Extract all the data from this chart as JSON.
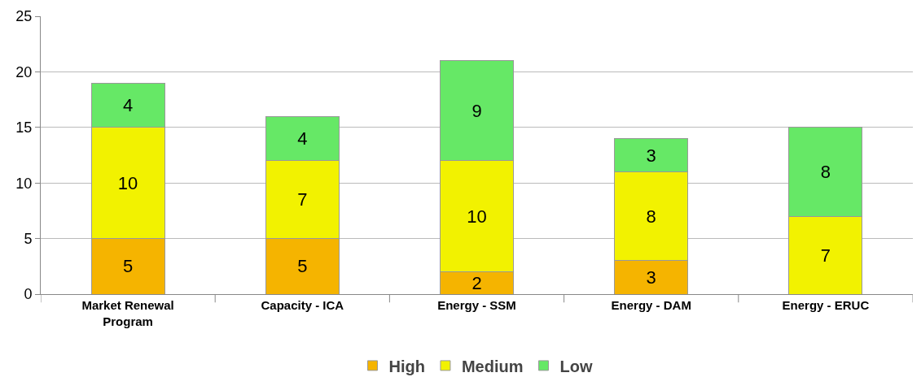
{
  "chart_data": {
    "type": "bar",
    "stacked": true,
    "categories": [
      "Market Renewal Program",
      "Capacity - ICA",
      "Energy - SSM",
      "Energy - DAM",
      "Energy - ERUC"
    ],
    "series": [
      {
        "name": "High",
        "color": "#f5b400",
        "values": [
          5,
          5,
          2,
          3,
          null
        ]
      },
      {
        "name": "Medium",
        "color": "#f2f200",
        "values": [
          10,
          7,
          10,
          8,
          7
        ]
      },
      {
        "name": "Low",
        "color": "#66e866",
        "values": [
          4,
          4,
          9,
          3,
          8
        ]
      }
    ],
    "ylim": [
      0,
      25
    ],
    "yticks": [
      0,
      5,
      10,
      15,
      20,
      25
    ],
    "grid": "y",
    "legend": "bottom",
    "data_labels": true
  }
}
